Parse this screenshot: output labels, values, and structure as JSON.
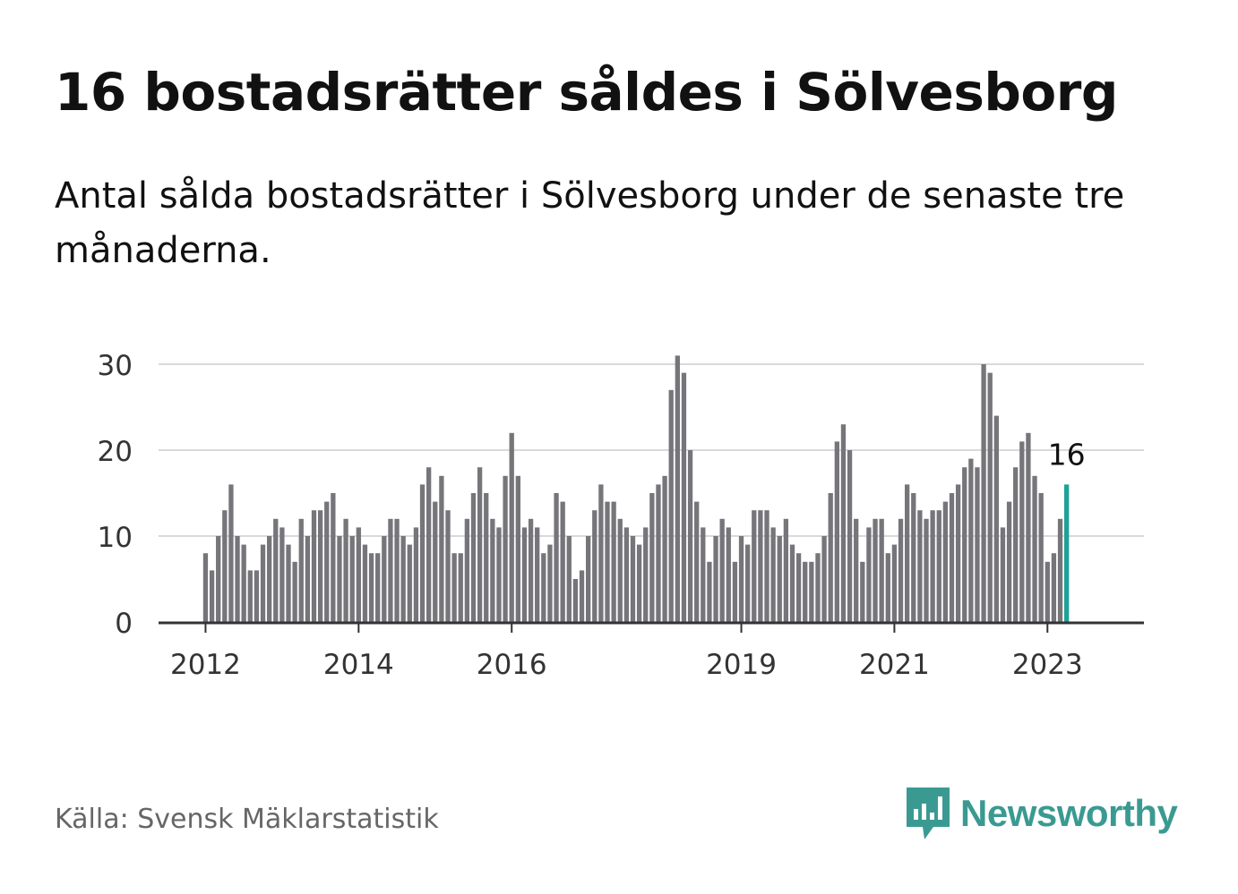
{
  "header": {
    "title": "16 bostadsrätter såldes i Sölvesborg",
    "subtitle": "Antal sålda bostadsrätter i Sölvesborg under de senaste tre månaderna."
  },
  "footer": {
    "source": "Källa: Svensk Mäklarstatistik",
    "brand": "Newsworthy"
  },
  "colors": {
    "bar": "#76757a",
    "highlight": "#1ea197",
    "grid": "#d9d9d9",
    "axis": "#333333",
    "brand": "#3a9a92"
  },
  "chart_data": {
    "type": "bar",
    "title": "16 bostadsrätter såldes i Sölvesborg",
    "subtitle": "Antal sålda bostadsrätter i Sölvesborg under de senaste tre månaderna.",
    "x_start": "2012-01",
    "interval": "month",
    "ylim": [
      0,
      31
    ],
    "yticks": [
      0,
      10,
      20,
      30
    ],
    "xticks": [
      "2012",
      "2014",
      "2016",
      "2019",
      "2021",
      "2023"
    ],
    "grid": true,
    "highlight_last": true,
    "annotation": "16",
    "values": [
      8,
      6,
      10,
      13,
      16,
      10,
      9,
      6,
      6,
      9,
      10,
      12,
      11,
      9,
      7,
      12,
      10,
      13,
      13,
      14,
      15,
      10,
      12,
      10,
      11,
      9,
      8,
      8,
      10,
      12,
      12,
      10,
      9,
      11,
      16,
      18,
      14,
      17,
      13,
      8,
      8,
      12,
      15,
      18,
      15,
      12,
      11,
      17,
      22,
      17,
      11,
      12,
      11,
      8,
      9,
      15,
      14,
      10,
      5,
      6,
      10,
      13,
      16,
      14,
      14,
      12,
      11,
      10,
      9,
      11,
      15,
      16,
      17,
      27,
      31,
      29,
      20,
      14,
      11,
      7,
      10,
      12,
      11,
      7,
      10,
      9,
      13,
      13,
      13,
      11,
      10,
      12,
      9,
      8,
      7,
      7,
      8,
      10,
      15,
      21,
      23,
      20,
      12,
      7,
      11,
      12,
      12,
      8,
      9,
      12,
      16,
      15,
      13,
      12,
      13,
      13,
      14,
      15,
      16,
      18,
      19,
      18,
      30,
      29,
      24,
      11,
      14,
      18,
      21,
      22,
      17,
      15,
      7,
      8,
      12,
      16
    ]
  }
}
